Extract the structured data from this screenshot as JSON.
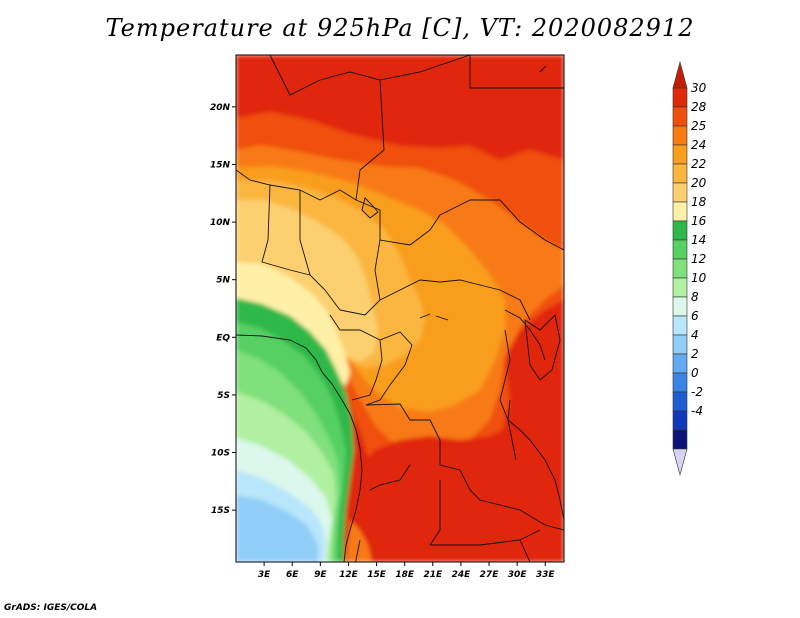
{
  "title": "Temperature at 925hPa [C], VT: 2020082912",
  "credit": "GrADS: IGES/COLA",
  "map": {
    "lon_range": [
      0,
      35
    ],
    "lat_range": [
      -19.5,
      24.5
    ],
    "lat_ticks": [
      {
        "value": 20,
        "label": "20N"
      },
      {
        "value": 15,
        "label": "15N"
      },
      {
        "value": 10,
        "label": "10N"
      },
      {
        "value": 5,
        "label": "5N"
      },
      {
        "value": 0,
        "label": "EQ"
      },
      {
        "value": -5,
        "label": "5S"
      },
      {
        "value": -10,
        "label": "10S"
      },
      {
        "value": -15,
        "label": "15S"
      }
    ],
    "lon_ticks": [
      {
        "value": 3,
        "label": "3E"
      },
      {
        "value": 6,
        "label": "6E"
      },
      {
        "value": 9,
        "label": "9E"
      },
      {
        "value": 12,
        "label": "12E"
      },
      {
        "value": 15,
        "label": "15E"
      },
      {
        "value": 18,
        "label": "18E"
      },
      {
        "value": 21,
        "label": "21E"
      },
      {
        "value": 24,
        "label": "24E"
      },
      {
        "value": 27,
        "label": "27E"
      },
      {
        "value": 30,
        "label": "30E"
      },
      {
        "value": 33,
        "label": "33E"
      }
    ]
  },
  "colorbar": {
    "levels": [
      {
        "label": "30",
        "color": "#e0280a"
      },
      {
        "label": "28",
        "color": "#f04f0e"
      },
      {
        "label": "25",
        "color": "#f87a12"
      },
      {
        "label": "24",
        "color": "#f99e1c"
      },
      {
        "label": "22",
        "color": "#fbb640"
      },
      {
        "label": "20",
        "color": "#fcd070"
      },
      {
        "label": "18",
        "color": "#fff0a8"
      },
      {
        "label": "16",
        "color": "#2fb84a"
      },
      {
        "label": "14",
        "color": "#57d064"
      },
      {
        "label": "12",
        "color": "#7fe07c"
      },
      {
        "label": "10",
        "color": "#b0f0a0"
      },
      {
        "label": "8",
        "color": "#dcf8ec"
      },
      {
        "label": "6",
        "color": "#b8e6fa"
      },
      {
        "label": "4",
        "color": "#90cef8"
      },
      {
        "label": "2",
        "color": "#62aaf2"
      },
      {
        "label": "0",
        "color": "#3a84e6"
      },
      {
        "label": "-2",
        "color": "#1e5cd2"
      },
      {
        "label": "-4",
        "color": "#1038b8"
      }
    ],
    "top_cap_color": "#c41e06",
    "bottom_cap_color": "#d8d2f2",
    "lowest_fill_color": "#0a1478"
  }
}
